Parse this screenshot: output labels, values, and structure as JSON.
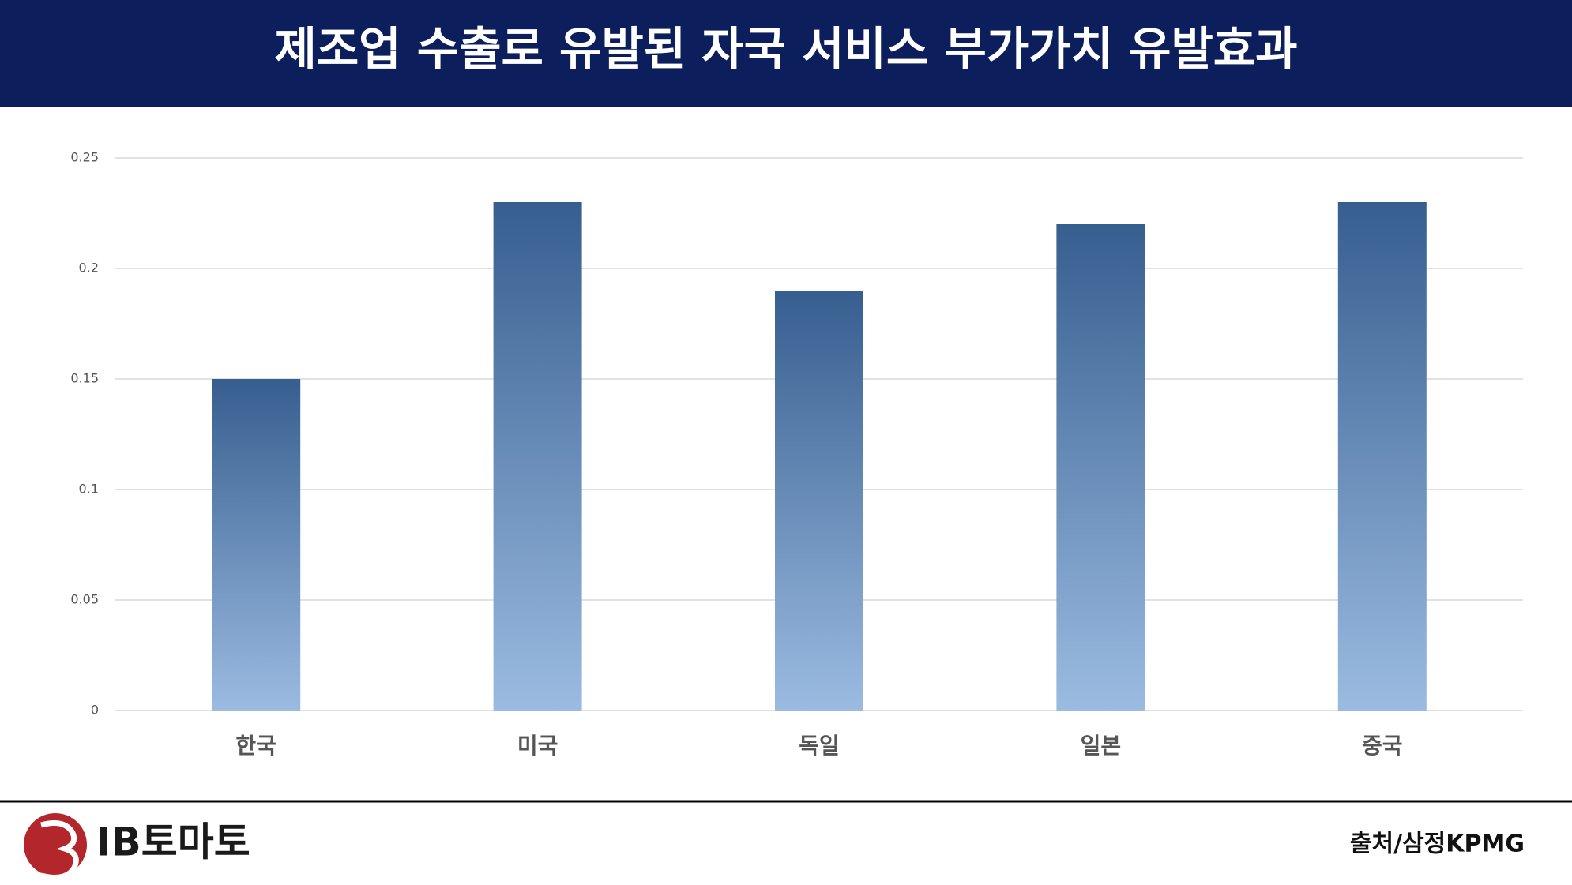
{
  "chart_data": {
    "type": "bar",
    "title": "제조업 수출로 유발된 자국 서비스 부가가치 유발효과",
    "categories": [
      "한국",
      "미국",
      "독일",
      "일본",
      "중국"
    ],
    "values": [
      0.15,
      0.23,
      0.19,
      0.22,
      0.23
    ],
    "gradient": [
      "#365e8f",
      "#9bbbe1"
    ],
    "ylim": [
      0,
      0.25
    ],
    "yticks": [
      0,
      0.05,
      0.1,
      0.15,
      0.2,
      0.25
    ],
    "grid": true
  },
  "footer": {
    "logo": "IB토마토",
    "source": "출처/삼정KPMG"
  }
}
